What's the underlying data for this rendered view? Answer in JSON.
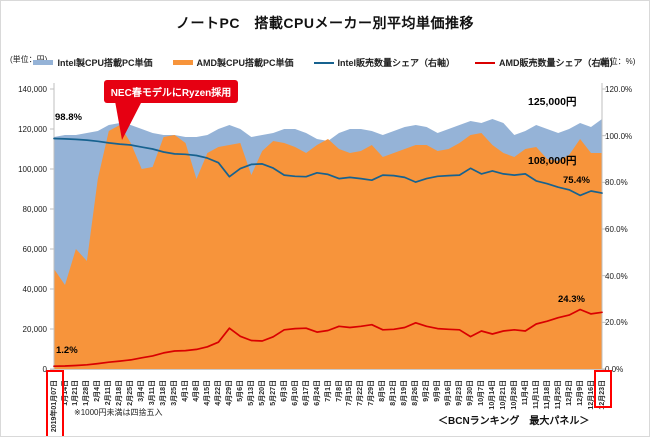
{
  "title": "ノートPC　搭載CPUメーカー別平均単価推移",
  "unit_left": "(単位：円)",
  "unit_right": "(単位：%)",
  "legend": [
    {
      "label": "Intel製CPU搭載PC単価",
      "color": "#95b3d7",
      "style": "area"
    },
    {
      "label": "AMD製CPU搭載PC単価",
      "color": "#f7943b",
      "style": "area"
    },
    {
      "label": "Intel販売数量シェア（右軸）",
      "color": "#17628f",
      "style": "line"
    },
    {
      "label": "AMD販売数量シェア（右軸）",
      "color": "#d90000",
      "style": "line"
    }
  ],
  "annotations": {
    "intel_share_start": "98.8%",
    "amd_share_start": "1.2%",
    "intel_price_end": "125,000円",
    "amd_price_end": "108,000円",
    "intel_share_end": "75.4%",
    "amd_share_end": "24.3%",
    "callout": "NEC春モデルにRyzen採用"
  },
  "footnote_left": "※1000円未満は四捨五入",
  "footnote_right": "＜BCNランキング　最大パネル＞",
  "chart_data": {
    "type": "area",
    "subtype": "combo area + line, dual axis",
    "grid": false,
    "legend_position": "top",
    "categories": [
      "2019年01月07日",
      "1月14日",
      "1月21日",
      "1月28日",
      "2月4日",
      "2月11日",
      "2月18日",
      "2月25日",
      "3月4日",
      "3月11日",
      "3月18日",
      "3月25日",
      "4月1日",
      "4月8日",
      "4月15日",
      "4月22日",
      "4月29日",
      "5月6日",
      "5月13日",
      "5月20日",
      "5月27日",
      "6月3日",
      "6月10日",
      "6月17日",
      "6月24日",
      "7月1日",
      "7月8日",
      "7月15日",
      "7月22日",
      "7月29日",
      "8月5日",
      "8月12日",
      "8月19日",
      "8月26日",
      "9月2日",
      "9月9日",
      "9月16日",
      "9月23日",
      "9月30日",
      "10月7日",
      "10月14日",
      "10月21日",
      "10月28日",
      "11月4日",
      "11月11日",
      "11月18日",
      "11月25日",
      "12月2日",
      "12月9日",
      "12月16日",
      "12月23日"
    ],
    "highlighted_categories": [
      "2019年01月07日",
      "12月23日"
    ],
    "y_left": {
      "label": "円",
      "min": 0,
      "max": 140000,
      "tick_step": 20000,
      "ticks": [
        "140,000",
        "120,000",
        "100,000",
        "80,000",
        "60,000",
        "40,000",
        "20,000",
        "0"
      ]
    },
    "y_right": {
      "label": "%",
      "min": 0,
      "max": 120,
      "tick_step": 20,
      "ticks": [
        "120.0%",
        "100.0%",
        "80.0%",
        "60.0%",
        "40.0%",
        "20.0%",
        "0.0%"
      ]
    },
    "series": [
      {
        "name": "Intel製CPU搭載PC単価",
        "type": "area",
        "axis": "left",
        "color": "#95b3d7",
        "values": [
          116000,
          117000,
          117000,
          118000,
          119000,
          122000,
          123000,
          122000,
          120000,
          118000,
          117000,
          117000,
          116000,
          116000,
          117000,
          120000,
          122000,
          120000,
          116000,
          117000,
          118000,
          120000,
          120000,
          118000,
          115000,
          114000,
          118000,
          120000,
          120000,
          119000,
          117000,
          119000,
          121000,
          122000,
          121000,
          118000,
          120000,
          122000,
          124000,
          123000,
          125000,
          123000,
          117000,
          119000,
          122000,
          120000,
          118000,
          120000,
          123000,
          121000,
          125000
        ]
      },
      {
        "name": "AMD製CPU搭載PC単価",
        "type": "area",
        "axis": "left",
        "color": "#f7943b",
        "values": [
          50000,
          42000,
          60000,
          54000,
          95000,
          119000,
          122000,
          113000,
          100000,
          101000,
          116000,
          117000,
          113000,
          95000,
          108000,
          111000,
          112000,
          113000,
          97000,
          109000,
          114000,
          113000,
          111000,
          108000,
          112000,
          115000,
          110000,
          108000,
          109000,
          112000,
          106000,
          108000,
          110000,
          112000,
          112000,
          109000,
          110000,
          113000,
          117000,
          118000,
          112000,
          108000,
          106000,
          110000,
          111000,
          105000,
          104000,
          107000,
          115000,
          108000,
          108000
        ]
      },
      {
        "name": "Intel販売数量シェア（右軸）",
        "type": "line",
        "axis": "right",
        "color": "#17628f",
        "values": [
          98.8,
          98.6,
          98.4,
          98.1,
          97.6,
          96.9,
          96.4,
          96.0,
          95.1,
          94.3,
          93.0,
          92.2,
          92.0,
          91.5,
          90.4,
          88.4,
          82.4,
          85.9,
          87.7,
          87.9,
          86.1,
          83.1,
          82.6,
          82.4,
          84.1,
          83.4,
          81.6,
          82.1,
          81.6,
          80.9,
          83.1,
          82.9,
          82.1,
          80.1,
          81.6,
          82.6,
          82.9,
          83.1,
          86.0,
          83.6,
          84.9,
          83.6,
          83.1,
          83.6,
          80.6,
          79.4,
          77.9,
          76.8,
          74.4,
          76.3,
          75.4
        ]
      },
      {
        "name": "AMD販売数量シェア（右軸）",
        "type": "line",
        "axis": "right",
        "color": "#d90000",
        "values": [
          1.2,
          1.3,
          1.5,
          1.8,
          2.3,
          2.9,
          3.4,
          3.9,
          4.8,
          5.6,
          6.9,
          7.7,
          7.9,
          8.4,
          9.5,
          11.5,
          17.5,
          14.0,
          12.2,
          12.0,
          13.8,
          16.8,
          17.3,
          17.5,
          15.8,
          16.5,
          18.3,
          17.8,
          18.3,
          19.0,
          16.8,
          17.0,
          17.8,
          19.8,
          18.3,
          17.3,
          17.0,
          16.8,
          13.9,
          16.3,
          15.0,
          16.3,
          16.8,
          16.3,
          19.3,
          20.5,
          22.0,
          23.1,
          25.5,
          23.6,
          24.3
        ]
      }
    ]
  }
}
